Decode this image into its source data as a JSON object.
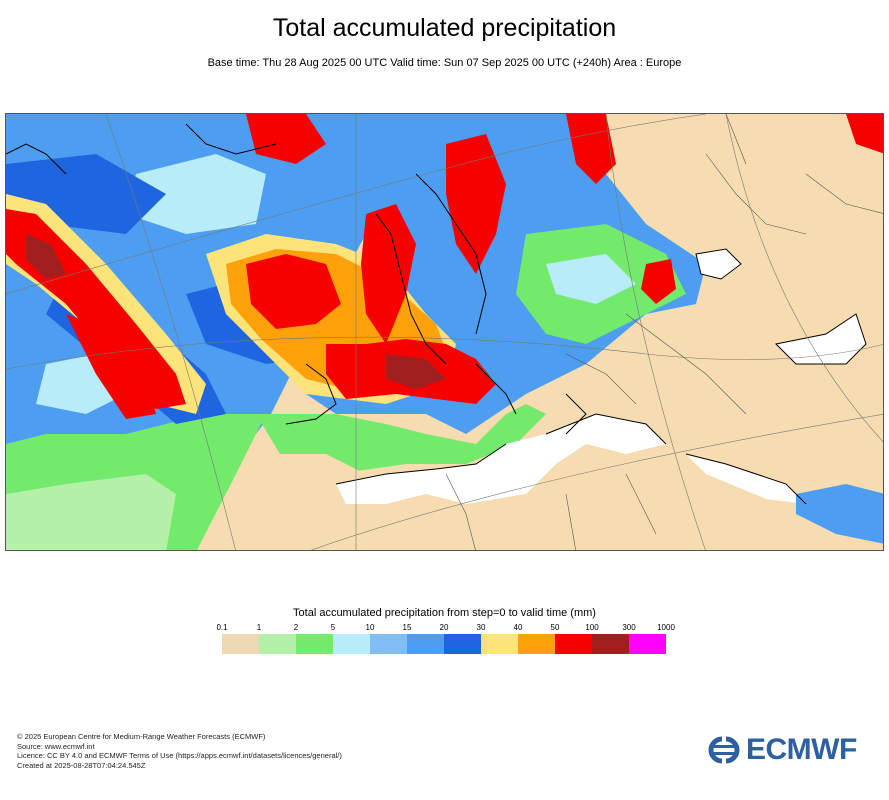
{
  "title": "Total accumulated precipitation",
  "subtitle": "Base time: Thu 28 Aug 2025 00 UTC Valid time: Sun 07 Sep 2025 00 UTC (+240h) Area : Europe",
  "legend": {
    "title": "Total accumulated precipitation from step=0 to valid time (mm)",
    "ticks": [
      "0.1",
      "1",
      "2",
      "5",
      "10",
      "15",
      "20",
      "30",
      "40",
      "50",
      "100",
      "300",
      "1000"
    ],
    "colors": [
      "#eed9b5",
      "#b4f0a8",
      "#74ea6c",
      "#b8ecf8",
      "#7fbdf3",
      "#4d9ef0",
      "#2065e0",
      "#fde47a",
      "#fea10a",
      "#f70000",
      "#a02020",
      "#ff00ff"
    ]
  },
  "palette": {
    "land_dry": "#f6dcb0",
    "sea_dry": "#ffffff",
    "coast": "#000000",
    "logo": "#2d5fa3"
  },
  "footer": {
    "line1": "© 2025 European Centre for Medium-Range Weather Forecasts (ECMWF)",
    "line2": "Source: www.ecmwf.int",
    "line3": "Licence: CC BY 4.0 and ECMWF Terms of Use (https://apps.ecmwf.int/datasets/licences/general/)",
    "line4": "Created at 2025-08-28T07:04:24.545Z"
  },
  "logo": {
    "text": "ECMWF",
    "icon": "ecmwf-logo-icon"
  }
}
